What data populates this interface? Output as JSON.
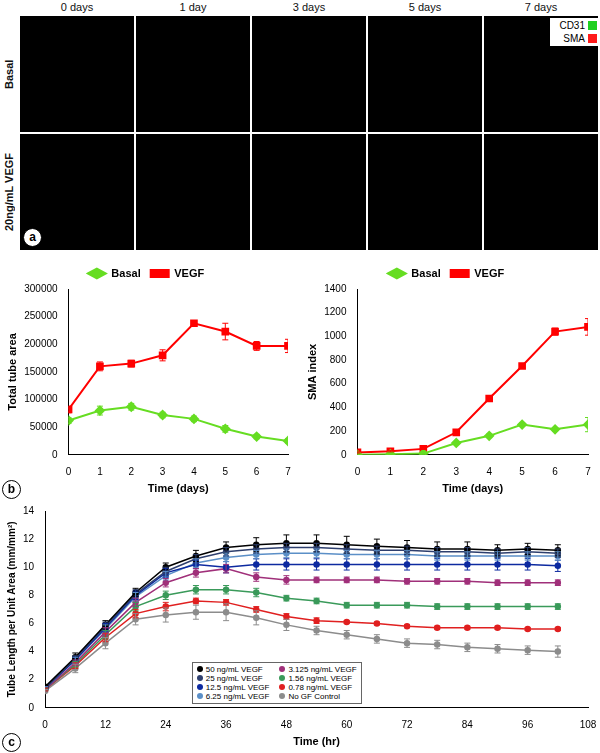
{
  "panel_a": {
    "label": "a",
    "columns": [
      "0 days",
      "1 day",
      "3 days",
      "5 days",
      "7 days"
    ],
    "rows": [
      "Basal",
      "20ng/mL VEGF"
    ],
    "channels": [
      {
        "name": "CD31",
        "color": "#1fd01f"
      },
      {
        "name": "SMA",
        "color": "#ff1a1a"
      }
    ]
  },
  "chart_data": [
    {
      "type": "line",
      "panel": "b",
      "y_label": "Total tube area",
      "x_label": "Time (days)",
      "x": [
        0,
        1,
        2,
        3,
        4,
        5,
        6,
        7
      ],
      "series": [
        {
          "name": "Basal",
          "color": "#66dd22",
          "marker": "diamond",
          "line_style": "solid",
          "values": [
            62000,
            80000,
            87000,
            72000,
            65000,
            47000,
            33000,
            25000
          ],
          "errors": [
            5000,
            8000,
            6000,
            5000,
            5000,
            6000,
            4000,
            4000
          ]
        },
        {
          "name": "VEGF",
          "color": "#ff0000",
          "marker": "square",
          "line_style": "solid",
          "values": [
            82000,
            160000,
            165000,
            180000,
            238000,
            223000,
            197000,
            197000
          ],
          "errors": [
            6000,
            8000,
            6000,
            10000,
            5000,
            15000,
            8000,
            12000
          ]
        }
      ],
      "xlim": [
        0,
        7
      ],
      "xticks": [
        0,
        1,
        2,
        3,
        4,
        5,
        6,
        7
      ],
      "ylim": [
        0,
        300000
      ],
      "yticks": [
        0,
        50000,
        100000,
        150000,
        200000,
        250000,
        300000
      ],
      "legend": "top",
      "grid": false
    },
    {
      "type": "line",
      "y_label": "SMA index",
      "x_label": "Time (days)",
      "x": [
        0,
        1,
        2,
        3,
        4,
        5,
        6,
        7
      ],
      "series": [
        {
          "name": "Basal",
          "color": "#66dd22",
          "marker": "diamond",
          "line_style": "solid",
          "values": [
            0,
            5,
            10,
            100,
            160,
            255,
            215,
            255
          ],
          "errors": [
            5,
            5,
            5,
            10,
            15,
            15,
            15,
            60
          ]
        },
        {
          "name": "VEGF",
          "color": "#ff0000",
          "marker": "square",
          "line_style": "solid",
          "values": [
            20,
            30,
            50,
            190,
            475,
            750,
            1040,
            1080
          ],
          "errors": [
            5,
            5,
            5,
            15,
            15,
            10,
            30,
            70
          ]
        }
      ],
      "xlim": [
        0,
        7
      ],
      "xticks": [
        0,
        1,
        2,
        3,
        4,
        5,
        6,
        7
      ],
      "ylim": [
        0,
        1400
      ],
      "yticks": [
        0,
        200,
        400,
        600,
        800,
        1000,
        1200,
        1400
      ],
      "legend": "top",
      "grid": false
    },
    {
      "type": "line",
      "panel": "c",
      "y_label": "Tube Length per Unit Area (mm/mm²)",
      "x_label": "Time (hr)",
      "x": [
        0,
        6,
        12,
        18,
        24,
        30,
        36,
        42,
        48,
        54,
        60,
        66,
        72,
        78,
        84,
        90,
        96,
        102
      ],
      "series": [
        {
          "name": "50 ng/mL VEGF",
          "color": "#000000",
          "marker": "circle",
          "line_style": "solid",
          "values": [
            1.5,
            3.6,
            5.9,
            8.2,
            10.0,
            10.8,
            11.4,
            11.6,
            11.7,
            11.7,
            11.6,
            11.5,
            11.4,
            11.3,
            11.3,
            11.2,
            11.3,
            11.2
          ],
          "errors": [
            0.1,
            0.3,
            0.3,
            0.3,
            0.3,
            0.4,
            0.4,
            0.5,
            0.6,
            0.6,
            0.6,
            0.5,
            0.5,
            0.5,
            0.5,
            0.4,
            0.4,
            0.4
          ]
        },
        {
          "name": "25 ng/mL VEGF",
          "color": "#2e3f6e",
          "marker": "circle",
          "line_style": "solid",
          "values": [
            1.4,
            3.5,
            5.8,
            8.1,
            9.7,
            10.6,
            11.1,
            11.3,
            11.4,
            11.4,
            11.3,
            11.2,
            11.2,
            11.1,
            11.1,
            11.0,
            11.1,
            11.0
          ],
          "errors": [
            0.1,
            0.2,
            0.3,
            0.3,
            0.3,
            0.3,
            0.3,
            0.3,
            0.3,
            0.3,
            0.3,
            0.3,
            0.3,
            0.3,
            0.3,
            0.3,
            0.3,
            0.3
          ]
        },
        {
          "name": "12.5 ng/mL VEGF",
          "color": "#0d2aa0",
          "marker": "circle",
          "line_style": "solid",
          "values": [
            1.4,
            3.4,
            5.7,
            8.0,
            9.6,
            10.2,
            10.0,
            10.2,
            10.2,
            10.2,
            10.2,
            10.2,
            10.2,
            10.2,
            10.2,
            10.2,
            10.2,
            10.1
          ],
          "errors": [
            0.1,
            0.2,
            0.3,
            0.3,
            0.3,
            0.3,
            0.4,
            0.4,
            0.4,
            0.4,
            0.4,
            0.4,
            0.4,
            0.4,
            0.4,
            0.4,
            0.4,
            0.4
          ]
        },
        {
          "name": "6.25 ng/mL VEGF",
          "color": "#5b8fc7",
          "marker": "circle",
          "line_style": "solid",
          "values": [
            1.4,
            3.4,
            5.6,
            7.9,
            9.4,
            10.3,
            10.7,
            10.9,
            11.0,
            11.0,
            10.9,
            10.9,
            10.9,
            10.8,
            10.8,
            10.8,
            10.8,
            10.8
          ],
          "errors": [
            0.1,
            0.2,
            0.3,
            0.3,
            0.3,
            0.3,
            0.3,
            0.3,
            0.3,
            0.3,
            0.3,
            0.3,
            0.3,
            0.3,
            0.3,
            0.3,
            0.3,
            0.3
          ]
        },
        {
          "name": "3.125 ng/mL VEGF",
          "color": "#a0307a",
          "marker": "circle",
          "line_style": "solid",
          "values": [
            1.3,
            3.2,
            5.4,
            7.5,
            8.9,
            9.6,
            9.9,
            9.3,
            9.1,
            9.1,
            9.1,
            9.1,
            9.0,
            9.0,
            9.0,
            8.9,
            8.9,
            8.9
          ],
          "errors": [
            0.1,
            0.2,
            0.3,
            0.3,
            0.3,
            0.3,
            0.3,
            0.3,
            0.3,
            0.2,
            0.2,
            0.2,
            0.2,
            0.2,
            0.2,
            0.2,
            0.2,
            0.2
          ]
        },
        {
          "name": "1.56 ng/mL VEGF",
          "color": "#3a9a5a",
          "marker": "circle",
          "line_style": "solid",
          "values": [
            1.3,
            3.1,
            5.2,
            7.2,
            8.0,
            8.4,
            8.4,
            8.2,
            7.8,
            7.6,
            7.3,
            7.3,
            7.3,
            7.2,
            7.2,
            7.2,
            7.2,
            7.2
          ],
          "errors": [
            0.1,
            0.2,
            0.3,
            0.3,
            0.3,
            0.3,
            0.3,
            0.3,
            0.2,
            0.2,
            0.2,
            0.2,
            0.2,
            0.2,
            0.2,
            0.2,
            0.2,
            0.2
          ]
        },
        {
          "name": "0.78 ng/mL VEGF",
          "color": "#e02020",
          "marker": "circle",
          "line_style": "solid",
          "values": [
            1.3,
            3.0,
            5.0,
            6.7,
            7.2,
            7.6,
            7.5,
            7.0,
            6.5,
            6.2,
            6.1,
            6.0,
            5.8,
            5.7,
            5.7,
            5.7,
            5.6,
            5.6
          ],
          "errors": [
            0.1,
            0.2,
            0.3,
            0.3,
            0.3,
            0.2,
            0.2,
            0.2,
            0.2,
            0.2,
            0.1,
            0.1,
            0.1,
            0.1,
            0.1,
            0.1,
            0.1,
            0.1
          ]
        },
        {
          "name": "No GF Control",
          "color": "#8c8c8c",
          "marker": "circle",
          "line_style": "solid",
          "values": [
            1.2,
            2.8,
            4.6,
            6.3,
            6.6,
            6.8,
            6.8,
            6.4,
            5.9,
            5.5,
            5.2,
            4.9,
            4.6,
            4.5,
            4.3,
            4.2,
            4.1,
            4.0
          ],
          "errors": [
            0.1,
            0.3,
            0.4,
            0.4,
            0.5,
            0.5,
            0.6,
            0.5,
            0.4,
            0.3,
            0.3,
            0.3,
            0.3,
            0.3,
            0.3,
            0.3,
            0.3,
            0.4
          ]
        }
      ],
      "xlim": [
        0,
        108
      ],
      "xticks": [
        0,
        12,
        24,
        36,
        48,
        60,
        72,
        84,
        96,
        108
      ],
      "ylim": [
        0,
        14
      ],
      "yticks": [
        0,
        2,
        4,
        6,
        8,
        10,
        12,
        14
      ],
      "legend": "bottom",
      "grid": false
    }
  ]
}
